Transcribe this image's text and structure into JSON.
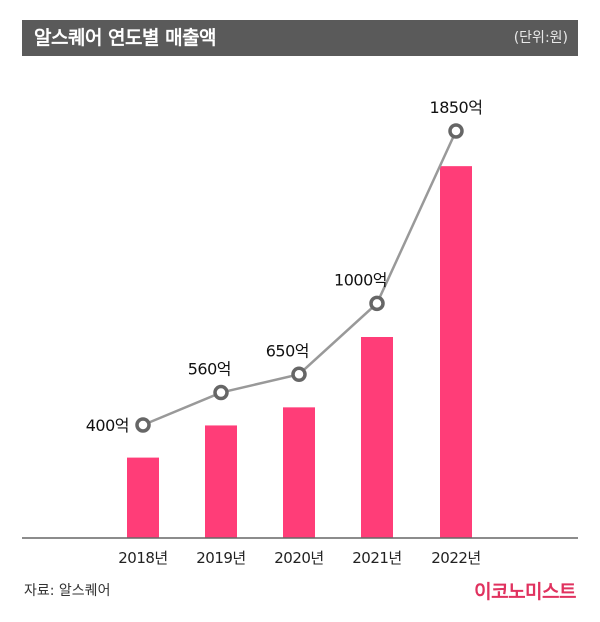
{
  "header": {
    "title": "알스퀘어 연도별 매출액",
    "unit": "(단위:원)"
  },
  "footer": {
    "source": "자료: 알스퀘어",
    "logo_text": "이코노미스트"
  },
  "colors": {
    "header_bg": "#5a5a5a",
    "bar": "#ff3d78",
    "line": "#999999",
    "marker_stroke": "#666666",
    "axis": "#666666",
    "logo": "#e0325f"
  },
  "chart_data": {
    "type": "bar",
    "title": "알스퀘어 연도별 매출액",
    "categories": [
      "2018년",
      "2019년",
      "2020년",
      "2021년",
      "2022년"
    ],
    "series": [
      {
        "values": [
          400,
          560,
          650,
          1000,
          1850
        ],
        "labels": [
          "400억",
          "560억",
          "650억",
          "1000억",
          "1850억"
        ]
      }
    ],
    "overlay": "line with circle markers over bars",
    "ylim": [
      0,
      2000
    ],
    "grid": false,
    "legend": "none"
  }
}
